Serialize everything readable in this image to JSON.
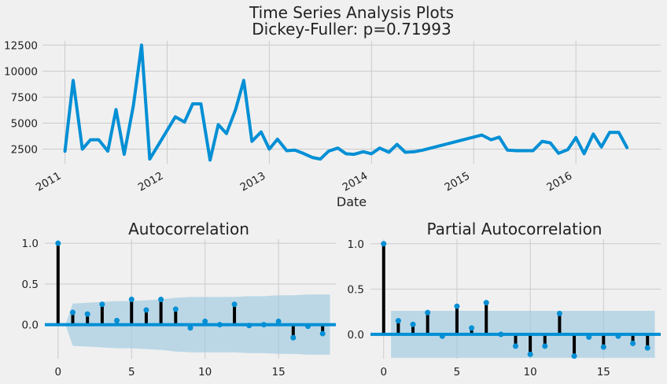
{
  "figure": {
    "title_line1": "Time Series Analysis Plots",
    "title_line2": "Dickey-Fuller: p=0.71993"
  },
  "colors": {
    "line": "#008fd5",
    "stem": "#000000",
    "band": "#9ecae1",
    "background": "#f0f0f0",
    "grid": "#cbcbcb"
  },
  "chart_data": [
    {
      "type": "line",
      "title": "Time Series Analysis Plots\nDickey-Fuller: p=0.71993",
      "xlabel": "Date",
      "ylabel": "",
      "x_range": [
        2010.78,
        2016.83
      ],
      "ylim": [
        1100,
        12900
      ],
      "yticks": [
        2500,
        5000,
        7500,
        10000,
        12500
      ],
      "ytick_labels": [
        "2500",
        "5000",
        "7500",
        "10000",
        "12500"
      ],
      "xticks": [
        2011,
        2012,
        2013,
        2014,
        2015,
        2016
      ],
      "xtick_labels": [
        "2011",
        "2012",
        "2013",
        "2014",
        "2015",
        "2016"
      ],
      "grid": true,
      "series": [
        {
          "x": [
            2011.0,
            2011.08,
            2011.17,
            2011.25,
            2011.33,
            2011.42,
            2011.5,
            2011.58,
            2011.67,
            2011.75,
            2011.83,
            2011.92,
            2012.0,
            2012.08,
            2012.17,
            2012.25,
            2012.33,
            2012.42,
            2012.5,
            2012.58,
            2012.67,
            2012.75,
            2012.83,
            2012.92,
            2013.0,
            2013.08,
            2013.17,
            2013.25,
            2013.33,
            2013.42,
            2013.5,
            2013.58,
            2013.67,
            2013.75,
            2013.83,
            2013.92,
            2014.0,
            2014.08,
            2014.17,
            2014.25,
            2014.33,
            2014.42,
            2014.5,
            2014.58,
            2015.08,
            2015.17,
            2015.25,
            2015.33,
            2015.42,
            2015.5,
            2015.58,
            2015.67,
            2015.75,
            2015.83,
            2015.92,
            2016.0,
            2016.08,
            2016.17,
            2016.25,
            2016.33,
            2016.42,
            2016.5
          ],
          "y": [
            2300,
            9100,
            2500,
            3400,
            3400,
            2300,
            6300,
            2000,
            6700,
            12500,
            1550,
            3000,
            4300,
            5600,
            5100,
            6850,
            6850,
            1450,
            4850,
            4000,
            6300,
            9100,
            3250,
            4150,
            2500,
            3450,
            2350,
            2400,
            2100,
            1700,
            1550,
            2300,
            2600,
            2050,
            2000,
            2250,
            2050,
            2600,
            2200,
            2950,
            2200,
            2250,
            2400,
            2600,
            3850,
            3400,
            3650,
            2400,
            2350,
            2350,
            2350,
            3250,
            3100,
            2100,
            2450,
            3600,
            2050,
            3950,
            2700,
            4100,
            4100,
            2650
          ]
        }
      ]
    },
    {
      "type": "stem",
      "title": "Autocorrelation",
      "xlabel": "",
      "ylabel": "",
      "xlim": [
        -0.9,
        18.9
      ],
      "ylim": [
        -0.42,
        1.05
      ],
      "xticks": [
        0,
        5,
        10,
        15
      ],
      "xtick_labels": [
        "0",
        "5",
        "10",
        "15"
      ],
      "yticks": [
        0.0,
        0.5,
        1.0
      ],
      "ytick_labels": [
        "0.0",
        "0.5",
        "1.0"
      ],
      "grid": true,
      "lags": [
        0,
        1,
        2,
        3,
        4,
        5,
        6,
        7,
        8,
        9,
        10,
        11,
        12,
        13,
        14,
        15,
        16,
        17,
        18
      ],
      "values": [
        1.0,
        0.15,
        0.13,
        0.25,
        0.05,
        0.31,
        0.18,
        0.31,
        0.19,
        -0.04,
        0.04,
        0.0,
        0.25,
        -0.01,
        0.0,
        0.04,
        -0.16,
        -0.02,
        -0.11
      ],
      "confidence_upper": [
        0.0,
        0.26,
        0.27,
        0.28,
        0.29,
        0.29,
        0.3,
        0.31,
        0.33,
        0.34,
        0.34,
        0.34,
        0.34,
        0.35,
        0.35,
        0.36,
        0.36,
        0.37,
        0.37
      ]
    },
    {
      "type": "stem",
      "title": "Partial Autocorrelation",
      "xlabel": "",
      "ylabel": "",
      "xlim": [
        -0.9,
        18.9
      ],
      "ylim": [
        -0.27,
        1.05
      ],
      "xticks": [
        0,
        5,
        10,
        15
      ],
      "xtick_labels": [
        "0",
        "5",
        "10",
        "15"
      ],
      "yticks": [
        0.0,
        0.5,
        1.0
      ],
      "ytick_labels": [
        "0.0",
        "0.5",
        "1.0"
      ],
      "grid": true,
      "lags": [
        0,
        1,
        2,
        3,
        4,
        5,
        6,
        7,
        8,
        9,
        10,
        11,
        12,
        13,
        14,
        15,
        16,
        17,
        18
      ],
      "values": [
        1.0,
        0.15,
        0.11,
        0.24,
        -0.02,
        0.31,
        0.07,
        0.35,
        0.0,
        -0.13,
        -0.22,
        -0.13,
        0.23,
        -0.24,
        -0.03,
        -0.14,
        -0.02,
        -0.1,
        -0.15
      ],
      "confidence_upper": [
        0.26,
        0.26,
        0.26,
        0.26,
        0.26,
        0.26,
        0.26,
        0.26,
        0.26,
        0.26,
        0.26,
        0.26,
        0.26,
        0.26,
        0.26,
        0.26,
        0.26,
        0.26,
        0.26
      ]
    }
  ]
}
